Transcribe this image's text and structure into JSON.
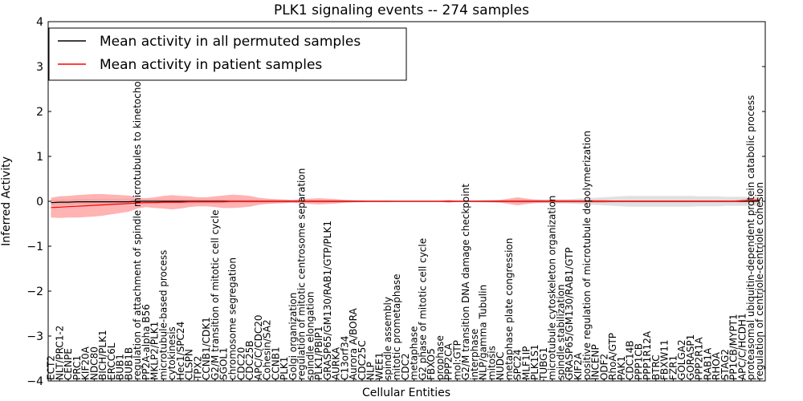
{
  "chart_data": {
    "type": "line",
    "title": "PLK1 signaling events -- 274 samples",
    "xlabel": "Cellular Entities",
    "ylabel": "Inferred Activity",
    "ylim": [
      -4,
      4
    ],
    "yticks": [
      -4,
      -3,
      -2,
      -1,
      0,
      1,
      2,
      3,
      4
    ],
    "ytick_labels": [
      "−4",
      "−3",
      "−2",
      "−1",
      "0",
      "1",
      "2",
      "3",
      "4"
    ],
    "grid": false,
    "legend": {
      "placement": "top-left",
      "entries": [
        {
          "label": "Mean activity in all permuted samples",
          "color": "#000000"
        },
        {
          "label": "Mean activity in patient samples",
          "color": "#ff0000"
        }
      ]
    },
    "colors": {
      "permuted_line": "#000000",
      "patient_line": "#ff0000",
      "permuted_band": "#cccccc",
      "patient_band": "#ff8080"
    },
    "entities": [
      "ECT2",
      "NLT/PRC1-2",
      "CENPE",
      "PRC1",
      "KIF20A",
      "NDC80",
      "BICH/PLK1",
      "ERCC6L",
      "BUB1",
      "BUB1B",
      "regulation of attachment of spindle microtubules to kinetochore",
      "PP2A-alpha B56",
      "MKLP2/PLK1",
      "microtubule-based process",
      "cytokinesis",
      "Hec1/SPC24",
      "CLSPN",
      "TPX2",
      "CCNB1/CDK1",
      "G2/M transition of mitotic cell cycle",
      "SGOL1",
      "chromosome segregation",
      "CDC20",
      "CDC25B",
      "APC/C/CDC20",
      "Cohesin/SA2",
      "CCNB1",
      "PLK1",
      "Golgi organization",
      "regulation of mitotic centrosome separation",
      "spindle elongation",
      "PLK1/PBIP1",
      "GRASP65/GM130/RAB1/GTP/PLK1",
      "AURKA",
      "C13orf34",
      "Aurora A/BORA",
      "CDC25C",
      "NLP",
      "WEE1",
      "spindle assembly",
      "mitotic prometaphase",
      "CDC2",
      "metaphase",
      "G2 phase of mitotic cell cycle",
      "FBXO5",
      "prophase",
      "PPP2CA",
      "mol:GTP",
      "G2/M transition DNA damage checkpoint",
      "interphase",
      "NLP/gamma Tubulin",
      "mitosis",
      "NUDC",
      "metaphase plate congression",
      "SPC24",
      "MLF1IP",
      "PLK1S1",
      "TUBG1",
      "microtubule cytoskeleton organization",
      "spindle stabilization",
      "GRASP65/GM130/RAB1/GTP",
      "KIF2A",
      "positive regulation of microtubule depolymerization",
      "INCENP",
      "ODF2",
      "RhoA/GTP",
      "PAK1",
      "CDC14B",
      "PPP1CB",
      "PPP1R12A",
      "BTRC",
      "FBXW11",
      "FZR1",
      "GOLGA2",
      "GORASP1",
      "PPP2R1A",
      "RAB1A",
      "RHOA",
      "STAG2",
      "PP1CB/MYPT1",
      "APC/C/HCDH1",
      "proteasomal ubiquitin-dependent protein catabolic process",
      "regulation of centriole-centriole cohesion"
    ],
    "series": [
      {
        "name": "Mean activity in all permuted samples",
        "values": [
          -0.03,
          -0.02,
          -0.02,
          -0.01,
          -0.01,
          -0.01,
          -0.01,
          -0.01,
          -0.01,
          -0.01,
          0,
          0,
          0,
          0,
          0,
          0,
          0,
          0,
          0,
          0,
          0,
          0,
          0,
          0,
          0,
          0,
          0,
          0,
          0,
          0,
          0,
          0,
          0,
          0,
          0,
          0,
          0,
          0,
          0,
          0,
          0,
          0,
          0,
          0,
          0,
          0,
          0,
          0,
          0,
          0,
          0,
          0,
          0,
          0,
          0,
          0,
          0,
          0,
          0,
          0,
          0,
          0,
          0,
          0,
          0,
          0,
          0,
          0,
          0,
          0,
          0,
          0,
          0,
          0,
          0,
          0,
          0,
          0,
          0,
          0,
          0,
          0,
          0
        ],
        "band": [
          0.06,
          0.06,
          0.06,
          0.06,
          0.06,
          0.06,
          0.06,
          0.06,
          0.06,
          0.06,
          0.05,
          0.05,
          0.05,
          0.05,
          0.05,
          0.05,
          0.05,
          0.05,
          0.05,
          0.05,
          0.04,
          0.04,
          0.04,
          0.04,
          0.04,
          0.04,
          0.04,
          0.04,
          0.03,
          0.03,
          0.03,
          0.03,
          0.03,
          0.03,
          0.03,
          0.03,
          0.02,
          0.02,
          0.02,
          0.02,
          0.01,
          0.01,
          0.01,
          0.01,
          0.01,
          0.01,
          0.02,
          0.02,
          0.02,
          0.02,
          0.03,
          0.03,
          0.03,
          0.03,
          0.04,
          0.04,
          0.04,
          0.04,
          0.05,
          0.05,
          0.05,
          0.06,
          0.07,
          0.08,
          0.09,
          0.1,
          0.11,
          0.12,
          0.12,
          0.12,
          0.12,
          0.12,
          0.12,
          0.12,
          0.12,
          0.11,
          0.11,
          0.11,
          0.1,
          0.1,
          0.1,
          0.1,
          0.1
        ]
      },
      {
        "name": "Mean activity in patient samples",
        "values": [
          -0.14,
          -0.13,
          -0.12,
          -0.11,
          -0.1,
          -0.09,
          -0.08,
          -0.07,
          -0.06,
          -0.05,
          -0.04,
          -0.03,
          -0.03,
          -0.02,
          -0.02,
          -0.02,
          -0.01,
          -0.01,
          -0.01,
          -0.01,
          -0.01,
          0,
          0,
          0,
          0,
          0,
          0,
          0,
          0,
          0,
          0,
          0,
          0,
          0,
          0,
          0,
          0,
          0,
          0,
          0,
          0,
          0,
          0,
          0,
          0,
          0,
          0,
          0,
          0,
          0,
          0,
          0,
          0,
          0,
          0,
          0,
          0,
          0,
          0,
          0,
          0,
          0,
          0,
          0,
          0,
          0,
          0,
          0,
          0,
          0,
          0,
          0,
          0,
          0,
          0,
          0,
          0,
          0,
          0,
          0,
          0.01,
          0.02,
          0.03
        ],
        "band": [
          0.22,
          0.24,
          0.24,
          0.25,
          0.25,
          0.25,
          0.24,
          0.22,
          0.2,
          0.18,
          0.12,
          0.1,
          0.12,
          0.14,
          0.16,
          0.14,
          0.12,
          0.1,
          0.1,
          0.12,
          0.14,
          0.15,
          0.14,
          0.12,
          0.08,
          0.06,
          0.05,
          0.04,
          0.03,
          0.05,
          0.06,
          0.07,
          0.06,
          0.05,
          0.03,
          0.02,
          0.02,
          0.01,
          0.01,
          0.01,
          0.01,
          0.01,
          0.01,
          0.01,
          0.01,
          0.01,
          0.03,
          0.01,
          0.01,
          0.01,
          0.01,
          0.02,
          0.03,
          0.06,
          0.09,
          0.06,
          0.04,
          0.03,
          0.03,
          0.03,
          0.03,
          0.03,
          0.03,
          0.03,
          0.03,
          0.02,
          0.02,
          0.02,
          0.02,
          0.02,
          0.02,
          0.02,
          0.02,
          0.02,
          0.02,
          0.02,
          0.02,
          0.02,
          0.02,
          0.02,
          0.03,
          0.03,
          0.04
        ]
      }
    ]
  }
}
